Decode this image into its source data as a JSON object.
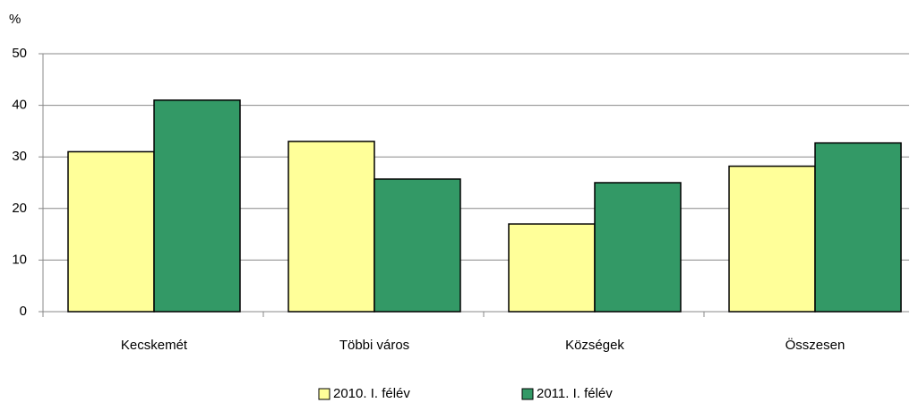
{
  "chart_data": {
    "type": "bar",
    "y_label": "%",
    "categories": [
      "Kecskemét",
      "Többi város",
      "Községek",
      "Összesen"
    ],
    "series": [
      {
        "name": "2010. I. félév",
        "color": "#ffff99",
        "values": [
          31,
          33,
          17,
          28.2
        ]
      },
      {
        "name": "2011. I. félév",
        "color": "#339966",
        "values": [
          41,
          25.7,
          25,
          32.7
        ]
      }
    ],
    "ylim": [
      0,
      50
    ],
    "yticks": [
      0,
      10,
      20,
      30,
      40,
      50
    ],
    "grid": true,
    "legend": "bottom"
  }
}
